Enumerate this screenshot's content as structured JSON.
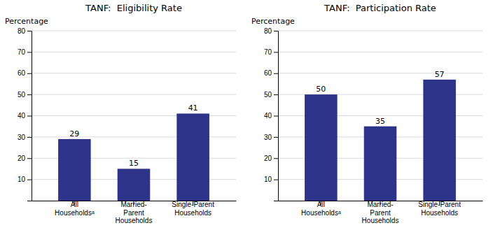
{
  "chart_data": [
    {
      "type": "bar",
      "title": "TANF:  Eligibility Rate",
      "ylabel": "Percentage",
      "categories": [
        "All\nHouseholdsᵃ",
        "Married-\nParent\nHouseholds",
        "Single-Parent\nHouseholds"
      ],
      "values": [
        29,
        15,
        41
      ],
      "color": "#2E338A",
      "ylim": [
        0,
        80
      ],
      "yticks": [
        10,
        20,
        30,
        40,
        50,
        60,
        70,
        80
      ],
      "grid": true,
      "data_labels": true
    },
    {
      "type": "bar",
      "title": "TANF:  Participation Rate",
      "ylabel": "Percentage",
      "categories": [
        "All\nHouseholdsᵃ",
        "Married-\nParent\nHouseholds",
        "Single-Parent\nHouseholds"
      ],
      "values": [
        50,
        35,
        57
      ],
      "color": "#2E338A",
      "ylim": [
        0,
        80
      ],
      "yticks": [
        10,
        20,
        30,
        40,
        50,
        60,
        70,
        80
      ],
      "grid": true,
      "data_labels": true
    }
  ]
}
